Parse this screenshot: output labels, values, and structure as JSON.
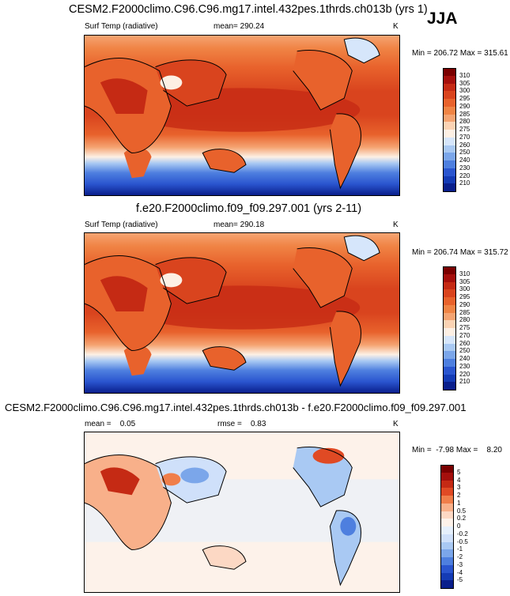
{
  "season": "JJA",
  "panels": [
    {
      "title": "CESM2.F2000climo.C96.C96.mg17.intel.432pes.1thrds.ch013b (yrs 1)",
      "left_label": "Surf Temp (radiative)",
      "center_label": "mean= 290.24",
      "unit": "K",
      "minmax": "Min = 206.72 Max = 315.61",
      "colorbar": {
        "labels": [
          "310",
          "305",
          "300",
          "295",
          "290",
          "285",
          "280",
          "275",
          "270",
          "260",
          "250",
          "240",
          "230",
          "220",
          "210"
        ],
        "colors": [
          "#7a0000",
          "#a50f0c",
          "#c52a14",
          "#d9441e",
          "#e8622c",
          "#f08445",
          "#f5a472",
          "#fbd3b4",
          "#fdf0e4",
          "#d6e6fb",
          "#a9c9f3",
          "#7ba6ea",
          "#4e7fdf",
          "#2a55cf",
          "#143bb5",
          "#0a1f8c"
        ]
      }
    },
    {
      "title": "f.e20.F2000climo.f09_f09.297.001 (yrs 2-11)",
      "left_label": "Surf Temp (radiative)",
      "center_label": "mean= 290.18",
      "unit": "K",
      "minmax": "Min = 206.74 Max = 315.72",
      "colorbar": {
        "labels": [
          "310",
          "305",
          "300",
          "295",
          "290",
          "285",
          "280",
          "275",
          "270",
          "260",
          "250",
          "240",
          "230",
          "220",
          "210"
        ],
        "colors": [
          "#7a0000",
          "#a50f0c",
          "#c52a14",
          "#d9441e",
          "#e8622c",
          "#f08445",
          "#f5a472",
          "#fbd3b4",
          "#fdf0e4",
          "#d6e6fb",
          "#a9c9f3",
          "#7ba6ea",
          "#4e7fdf",
          "#2a55cf",
          "#143bb5",
          "#0a1f8c"
        ]
      }
    },
    {
      "title": "CESM2.F2000climo.C96.C96.mg17.intel.432pes.1thrds.ch013b - f.e20.F2000climo.f09_f09.297.001",
      "left_label": "mean =    0.05",
      "center_label": "rmse =    0.83",
      "unit": "K",
      "minmax": "Min =  -7.98 Max =    8.20",
      "colorbar": {
        "labels": [
          "5",
          "4",
          "3",
          "2",
          "1",
          "0.5",
          "0.2",
          "0",
          "-0.2",
          "-0.5",
          "-1",
          "-2",
          "-3",
          "-4",
          "-5"
        ],
        "colors": [
          "#7a0000",
          "#a50f0c",
          "#c52a14",
          "#e04a24",
          "#f07e4a",
          "#f8b08a",
          "#fcd8c4",
          "#fdf2ea",
          "#e6f0fc",
          "#cfe0fa",
          "#a9c9f3",
          "#7ba6ea",
          "#4e7fdf",
          "#2a55cf",
          "#143bb5",
          "#0a1f8c"
        ]
      }
    }
  ],
  "chart_data": [
    {
      "type": "heatmap",
      "title": "CESM2.F2000climo.C96.C96.mg17.intel.432pes.1thrds.ch013b (yrs 1)",
      "variable": "Surf Temp (radiative)",
      "units": "K",
      "mean": 290.24,
      "min": 206.72,
      "max": 315.61,
      "contour_levels": [
        210,
        220,
        230,
        240,
        250,
        260,
        270,
        275,
        280,
        285,
        290,
        295,
        300,
        305,
        310
      ]
    },
    {
      "type": "heatmap",
      "title": "f.e20.F2000climo.f09_f09.297.001 (yrs 2-11)",
      "variable": "Surf Temp (radiative)",
      "units": "K",
      "mean": 290.18,
      "min": 206.74,
      "max": 315.72,
      "contour_levels": [
        210,
        220,
        230,
        240,
        250,
        260,
        270,
        275,
        280,
        285,
        290,
        295,
        300,
        305,
        310
      ]
    },
    {
      "type": "heatmap",
      "title": "CESM2.F2000climo.C96.C96.mg17.intel.432pes.1thrds.ch013b - f.e20.F2000climo.f09_f09.297.001",
      "units": "K",
      "mean": 0.05,
      "rmse": 0.83,
      "min": -7.98,
      "max": 8.2,
      "contour_levels": [
        -5,
        -4,
        -3,
        -2,
        -1,
        -0.5,
        -0.2,
        0,
        0.2,
        0.5,
        1,
        2,
        3,
        4,
        5
      ]
    }
  ]
}
